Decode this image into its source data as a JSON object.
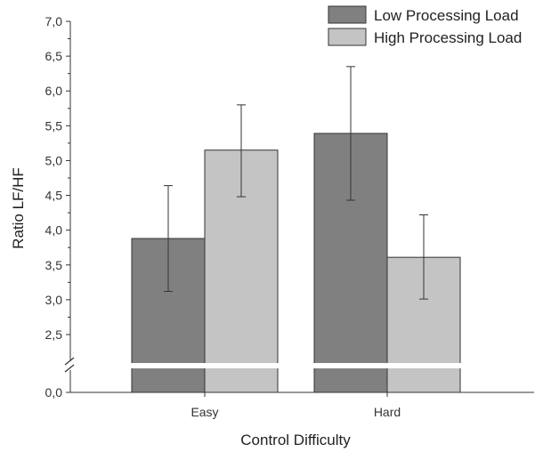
{
  "chart_data": {
    "type": "bar",
    "title": "",
    "xlabel": "Control Difficulty",
    "ylabel": "Ratio LF/HF",
    "categories": [
      "Easy",
      "Hard"
    ],
    "series": [
      {
        "name": "Low Processing Load",
        "color": "#808080",
        "values": [
          3.88,
          5.39
        ],
        "error_upper": [
          4.64,
          6.35
        ],
        "error_lower": [
          3.12,
          4.43
        ]
      },
      {
        "name": "High Processing Load",
        "color": "#c4c4c4",
        "values": [
          5.15,
          3.61
        ],
        "error_upper": [
          5.8,
          4.22
        ],
        "error_lower": [
          4.48,
          3.01
        ]
      }
    ],
    "ylim": [
      0,
      7.0
    ],
    "axis_break": {
      "from": 0.0,
      "to": 2.5
    },
    "y_ticks": [
      "0,0",
      "2,5",
      "3,0",
      "3,5",
      "4,0",
      "4,5",
      "5,0",
      "5,5",
      "6,0",
      "6,5",
      "7,0"
    ],
    "grid": false,
    "legend_position": "top-right"
  }
}
